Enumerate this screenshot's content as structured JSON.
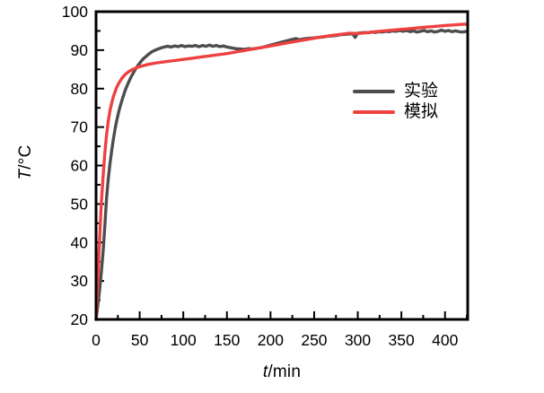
{
  "chart_data": {
    "type": "line",
    "title": "",
    "xlabel_var": "t",
    "xlabel_unit": "/min",
    "ylabel_var": "T",
    "ylabel_unit": "/°C",
    "x_range": [
      0,
      426
    ],
    "y_range": [
      20,
      100
    ],
    "x_major_ticks": [
      0,
      50,
      100,
      150,
      200,
      250,
      300,
      350,
      400
    ],
    "x_minor_step": 25,
    "y_major_ticks": [
      20,
      30,
      40,
      50,
      60,
      70,
      80,
      90,
      100
    ],
    "y_minor_step": 5,
    "grid": false,
    "legend_position": "right-middle",
    "frame_color": "#000000",
    "series": [
      {
        "name": "实验",
        "color": "#4d4d4d",
        "t": [
          0,
          2,
          4,
          6,
          8,
          10,
          12,
          14,
          16,
          18,
          20,
          22,
          24,
          26,
          28,
          30,
          32,
          34,
          36,
          38,
          40,
          42,
          44,
          46,
          48,
          50,
          52,
          54,
          56,
          58,
          60,
          63,
          66,
          69,
          72,
          75,
          78,
          82,
          86,
          90,
          94,
          98,
          102,
          106,
          110,
          114,
          118,
          122,
          126,
          130,
          134,
          138,
          142,
          146,
          150,
          155,
          160,
          165,
          170,
          175,
          180,
          185,
          190,
          195,
          200,
          205,
          210,
          215,
          220,
          225,
          229,
          233,
          237,
          241,
          245,
          250,
          255,
          260,
          265,
          270,
          275,
          280,
          285,
          290,
          294,
          297,
          300,
          304,
          308,
          312,
          316,
          320,
          324,
          328,
          332,
          336,
          340,
          344,
          348,
          352,
          356,
          360,
          364,
          368,
          372,
          376,
          380,
          384,
          388,
          392,
          396,
          400,
          404,
          408,
          412,
          416,
          420,
          425
        ],
        "T": [
          20.0,
          23.5,
          27.5,
          32.0,
          37.5,
          44.0,
          51.5,
          56.5,
          60.5,
          64.0,
          67.0,
          69.8,
          72.0,
          74.0,
          75.7,
          77.2,
          78.6,
          79.9,
          81.0,
          82.0,
          83.0,
          83.8,
          84.6,
          85.3,
          86.0,
          86.6,
          87.2,
          87.7,
          88.1,
          88.5,
          88.9,
          89.4,
          89.8,
          90.1,
          90.4,
          90.6,
          90.8,
          91.0,
          90.8,
          91.1,
          90.9,
          91.2,
          90.9,
          91.1,
          91.0,
          91.2,
          90.9,
          91.2,
          91.0,
          91.3,
          91.0,
          91.2,
          90.9,
          91.1,
          90.8,
          90.6,
          90.4,
          90.3,
          90.2,
          90.4,
          90.3,
          90.5,
          90.7,
          91.0,
          91.3,
          91.6,
          91.9,
          92.2,
          92.5,
          92.8,
          93.0,
          92.7,
          92.9,
          93.0,
          93.1,
          93.2,
          93.3,
          93.4,
          93.6,
          93.7,
          93.8,
          94.0,
          94.1,
          94.2,
          94.3,
          93.3,
          94.4,
          94.5,
          94.6,
          94.5,
          94.7,
          94.6,
          94.8,
          94.7,
          94.9,
          94.8,
          95.0,
          94.9,
          95.1,
          94.9,
          95.1,
          94.8,
          95.0,
          94.7,
          94.9,
          95.1,
          94.8,
          95.0,
          94.7,
          94.9,
          95.2,
          94.9,
          95.1,
          94.8,
          95.0,
          94.8,
          94.7,
          94.9
        ]
      },
      {
        "name": "模拟",
        "color": "#ee4140",
        "t": [
          0,
          1,
          2,
          3,
          4,
          5,
          6,
          7,
          8,
          10,
          12,
          14,
          16,
          18,
          20,
          23,
          26,
          30,
          34,
          38,
          42,
          46,
          50,
          55,
          60,
          70,
          80,
          90,
          100,
          110,
          120,
          130,
          140,
          150,
          160,
          170,
          180,
          190,
          200,
          210,
          220,
          230,
          240,
          250,
          260,
          270,
          280,
          290,
          300,
          310,
          320,
          330,
          340,
          350,
          360,
          370,
          380,
          390,
          400,
          410,
          420,
          425
        ],
        "T": [
          20,
          25,
          30,
          35.5,
          40.5,
          45.5,
          50,
          53.5,
          57,
          63,
          68,
          71.5,
          74.3,
          76.3,
          78,
          80,
          81.4,
          82.8,
          83.8,
          84.5,
          85.0,
          85.4,
          85.7,
          86.0,
          86.3,
          86.7,
          87.0,
          87.3,
          87.6,
          87.9,
          88.2,
          88.5,
          88.8,
          89.1,
          89.5,
          89.9,
          90.3,
          90.7,
          91.1,
          91.5,
          91.9,
          92.3,
          92.7,
          93.1,
          93.5,
          93.8,
          94.1,
          94.4,
          94.3,
          94.55,
          94.8,
          95.0,
          95.2,
          95.4,
          95.6,
          95.8,
          96.0,
          96.2,
          96.4,
          96.55,
          96.7,
          96.75
        ]
      }
    ]
  }
}
